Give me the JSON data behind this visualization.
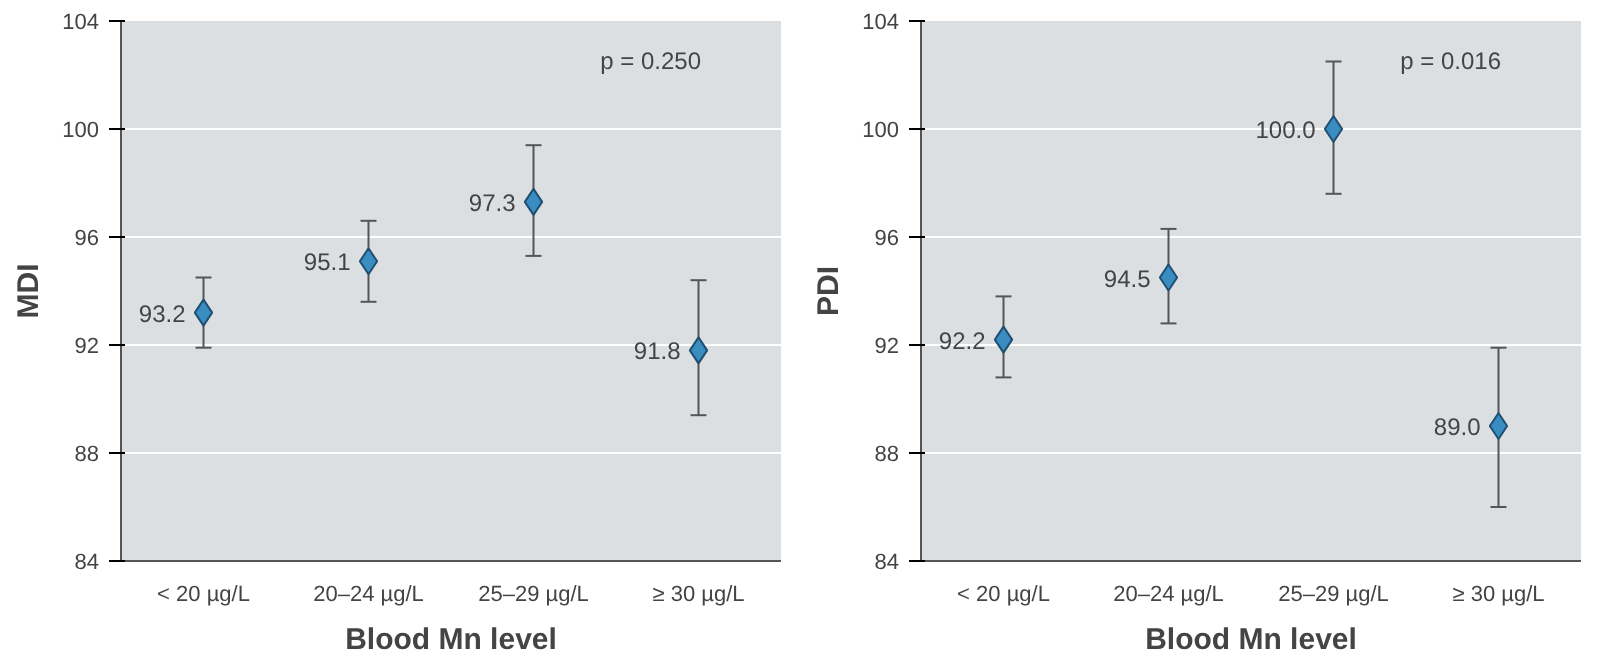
{
  "chart_data": [
    {
      "type": "scatter",
      "xlabel": "Blood Mn level",
      "ylabel": "MDI",
      "categories": [
        "< 20 µg/L",
        "20–24 µg/L",
        "25–29 µg/L",
        "≥ 30 µg/L"
      ],
      "series": [
        {
          "color": "#3a8dc1",
          "values": [
            93.2,
            95.1,
            97.3,
            91.8
          ],
          "value_labels": [
            "93.2",
            "95.1",
            "97.3",
            "91.8"
          ],
          "errors": [
            [
              91.9,
              94.5
            ],
            [
              93.6,
              96.6
            ],
            [
              95.3,
              99.4
            ],
            [
              89.4,
              94.4
            ]
          ]
        }
      ],
      "ylim": [
        84,
        104
      ],
      "yticks": [
        84,
        88,
        92,
        96,
        100,
        104
      ],
      "grid": "y",
      "marker": "diamond",
      "annotations": [
        "p = 0.250"
      ]
    },
    {
      "type": "scatter",
      "xlabel": "Blood Mn level",
      "ylabel": "PDI",
      "categories": [
        "< 20 µg/L",
        "20–24 µg/L",
        "25–29 µg/L",
        "≥ 30 µg/L"
      ],
      "series": [
        {
          "color": "#3a8dc1",
          "values": [
            92.2,
            94.5,
            100.0,
            89.0
          ],
          "value_labels": [
            "92.2",
            "94.5",
            "100.0",
            "89.0"
          ],
          "errors": [
            [
              90.8,
              93.8
            ],
            [
              92.8,
              96.3
            ],
            [
              97.6,
              102.5
            ],
            [
              86.0,
              91.9
            ]
          ]
        }
      ],
      "ylim": [
        84,
        104
      ],
      "yticks": [
        84,
        88,
        92,
        96,
        100,
        104
      ],
      "grid": "y",
      "marker": "diamond",
      "annotations": [
        "p = 0.016"
      ]
    }
  ]
}
